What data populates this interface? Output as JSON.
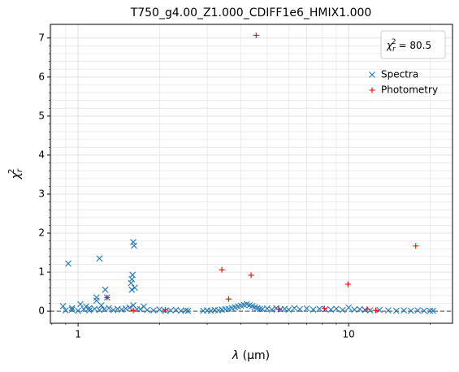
{
  "chart_data": {
    "type": "scatter",
    "title": "T750_g4.00_Z1.000_CDIFF1e6_HMIX1.000",
    "xlabel": {
      "symbol": "λ",
      "unit": "(μm)"
    },
    "ylabel": {
      "symbol": "χ",
      "superscript": "2",
      "subscript": "r"
    },
    "annotation": {
      "symbol": "χ",
      "superscript": "2",
      "subscript": "r",
      "text": "= 80.5"
    },
    "xscale": "log",
    "xlim": [
      0.79,
      24.2
    ],
    "ylim": [
      -0.31,
      7.35
    ],
    "xticks": [
      1,
      10
    ],
    "yticks": [
      0,
      1,
      2,
      3,
      4,
      5,
      6,
      7
    ],
    "grid": true,
    "minor_grid": true,
    "legend": "upper right",
    "hline": 0,
    "series": [
      {
        "name": "Spectra",
        "color": "#1f77b4",
        "marker": "x",
        "x": [
          0.88,
          0.92,
          0.95,
          1.02,
          1.07,
          1.1,
          1.17,
          1.17,
          1.2,
          1.26,
          1.28,
          1.22,
          1.6,
          1.61,
          1.59,
          1.58,
          1.57,
          1.58,
          1.62,
          1.6,
          1.75,
          1.65,
          0.9,
          0.95,
          1.0,
          1.05,
          1.1,
          1.15,
          1.2,
          1.25,
          1.3,
          1.35,
          1.4,
          1.45,
          1.5,
          1.55,
          1.7,
          1.8,
          1.9,
          2.0,
          2.1,
          2.2,
          2.3,
          2.4,
          2.5,
          2.55,
          2.9,
          3.0,
          3.1,
          3.2,
          3.3,
          3.4,
          3.5,
          3.6,
          3.7,
          3.8,
          3.9,
          4.0,
          4.1,
          4.2,
          4.3,
          4.4,
          4.5,
          4.6,
          4.7,
          4.8,
          5.0,
          5.2,
          5.4,
          5.6,
          5.8,
          6.0,
          6.3,
          6.6,
          7.0,
          7.4,
          7.8,
          8.2,
          8.6,
          9.0,
          9.5,
          10.0,
          10.5,
          11.0,
          11.5,
          12.0,
          13.0,
          14.0,
          15.0,
          16.0,
          17.0,
          18.0,
          19.0,
          20.0,
          20.5
        ],
        "values": [
          0.13,
          1.22,
          0.08,
          0.18,
          0.12,
          0.08,
          0.27,
          0.35,
          1.35,
          0.55,
          0.35,
          0.15,
          1.77,
          1.68,
          0.93,
          0.82,
          0.72,
          0.55,
          0.6,
          0.15,
          0.12,
          0.05,
          0.02,
          0.04,
          0.01,
          0.05,
          0.02,
          0.06,
          0.03,
          0.05,
          0.08,
          0.03,
          0.06,
          0.04,
          0.07,
          0.09,
          0.05,
          0.03,
          0.02,
          0.04,
          0.01,
          0.02,
          0.03,
          0.01,
          0.02,
          0.01,
          0.01,
          0.02,
          0.01,
          0.03,
          0.02,
          0.04,
          0.05,
          0.06,
          0.08,
          0.1,
          0.12,
          0.14,
          0.16,
          0.18,
          0.15,
          0.13,
          0.1,
          0.08,
          0.06,
          0.05,
          0.07,
          0.04,
          0.08,
          0.05,
          0.06,
          0.04,
          0.08,
          0.05,
          0.07,
          0.04,
          0.06,
          0.05,
          0.04,
          0.06,
          0.03,
          0.09,
          0.04,
          0.05,
          0.03,
          0.02,
          0.03,
          0.02,
          0.01,
          0.02,
          0.01,
          0.02,
          0.01,
          0.01,
          0.01
        ]
      },
      {
        "name": "Photometry",
        "color": "#ff0000",
        "marker": "+",
        "x": [
          1.28,
          1.6,
          2.1,
          3.4,
          3.6,
          4.36,
          4.55,
          5.52,
          8.13,
          9.94,
          11.7,
          12.6,
          17.7
        ],
        "values": [
          0.35,
          0.02,
          0.03,
          1.06,
          0.31,
          0.92,
          7.07,
          0.05,
          0.07,
          0.69,
          0.05,
          0.02,
          1.67
        ]
      }
    ]
  }
}
